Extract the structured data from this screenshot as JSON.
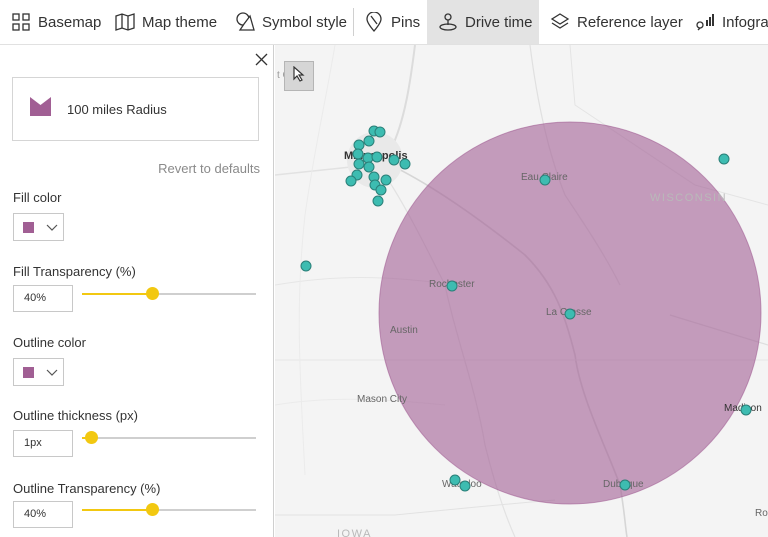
{
  "toolbar": {
    "items": [
      {
        "label": "Basemap",
        "icon": "basemap-grid-icon"
      },
      {
        "label": "Map theme",
        "icon": "map-theme-icon"
      },
      {
        "label": "Symbol style",
        "icon": "symbol-style-icon"
      },
      {
        "label": "Pins",
        "icon": "pin-icon"
      },
      {
        "label": "Drive time",
        "icon": "drive-time-icon"
      },
      {
        "label": "Reference layer",
        "icon": "layers-icon"
      },
      {
        "label": "Infogra",
        "icon": "infographics-icon"
      }
    ],
    "active": "Drive time"
  },
  "panel": {
    "preset_label": "100 miles Radius",
    "revert_label": "Revert to defaults",
    "fill_color_label": "Fill color",
    "fill_color": "#a15f94",
    "fill_transparency_label": "Fill Transparency (%)",
    "fill_transparency_value": "40%",
    "fill_transparency_level": 0.4,
    "outline_color_label": "Outline color",
    "outline_color": "#a15f94",
    "outline_thickness_label": "Outline thickness (px)",
    "outline_thickness_value": "1px",
    "outline_thickness_level": 0.05,
    "outline_transparency_label": "Outline Transparency (%)",
    "outline_transparency_value": "40%",
    "outline_transparency_level": 0.4
  },
  "map": {
    "labels": {
      "minneapolis": "Minneapolis",
      "eau_claire": "Eau Claire",
      "wisconsin": "WISCONSIN",
      "rochester": "Rochester",
      "la_crosse": "La Crosse",
      "austin": "Austin",
      "mason_city": "Mason City",
      "madison": "Madison",
      "waterloo": "Waterloo",
      "dubuque": "Dubuque",
      "iowa": "IOWA",
      "ro": "Ro",
      "st_c": "t C"
    },
    "accent_pin_color": "#3dbcb1",
    "radius_color": "#a15f94"
  }
}
